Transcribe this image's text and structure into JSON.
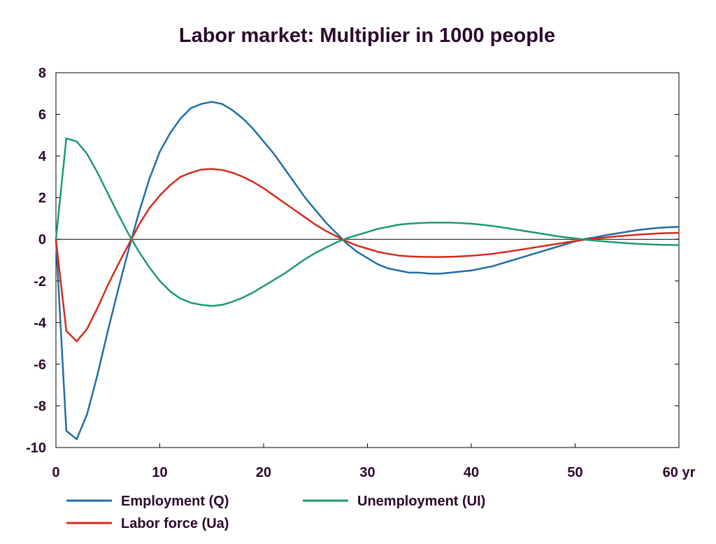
{
  "chart_data": {
    "type": "line",
    "title": "Labor market: Multiplier in 1000 people",
    "xlabel": "",
    "ylabel": "",
    "xlim": [
      0,
      60
    ],
    "ylim": [
      -10,
      8
    ],
    "x_ticks": [
      0,
      10,
      20,
      30,
      40,
      50,
      60
    ],
    "x_tick_labels": [
      "0",
      "10",
      "20",
      "30",
      "40",
      "50",
      "60 yr"
    ],
    "y_ticks": [
      8,
      6,
      4,
      2,
      0,
      -2,
      -4,
      -6,
      -8,
      -10
    ],
    "y_tick_labels": [
      "8",
      "6",
      "4",
      "2",
      "0",
      "-2",
      "-4",
      "-6",
      "-8",
      "-10"
    ],
    "grid": false,
    "zero_line": true,
    "legend_position": "bottom",
    "x": [
      0,
      1,
      2,
      3,
      4,
      5,
      6,
      7,
      8,
      9,
      10,
      11,
      12,
      13,
      14,
      15,
      16,
      17,
      18,
      19,
      20,
      21,
      22,
      23,
      24,
      25,
      26,
      27,
      28,
      29,
      30,
      31,
      32,
      33,
      34,
      35,
      36,
      37,
      38,
      39,
      40,
      41,
      42,
      43,
      44,
      45,
      46,
      47,
      48,
      49,
      50,
      51,
      52,
      53,
      54,
      55,
      56,
      57,
      58,
      59,
      60
    ],
    "series": [
      {
        "name": "Employment (Q)",
        "color": "#1f6ea6",
        "values": [
          0,
          -9.2,
          -9.6,
          -8.4,
          -6.5,
          -4.4,
          -2.4,
          -0.5,
          1.3,
          2.9,
          4.2,
          5.1,
          5.8,
          6.3,
          6.5,
          6.6,
          6.5,
          6.2,
          5.8,
          5.3,
          4.7,
          4.1,
          3.4,
          2.7,
          2.0,
          1.4,
          0.8,
          0.3,
          -0.2,
          -0.6,
          -0.9,
          -1.2,
          -1.4,
          -1.5,
          -1.6,
          -1.6,
          -1.65,
          -1.65,
          -1.6,
          -1.55,
          -1.5,
          -1.4,
          -1.3,
          -1.15,
          -1.0,
          -0.85,
          -0.7,
          -0.55,
          -0.4,
          -0.25,
          -0.1,
          0.02,
          0.1,
          0.2,
          0.28,
          0.36,
          0.44,
          0.5,
          0.55,
          0.58,
          0.6
        ]
      },
      {
        "name": "Labor force (Ua)",
        "color": "#d62a1a",
        "values": [
          0,
          -4.4,
          -4.9,
          -4.3,
          -3.3,
          -2.2,
          -1.2,
          -0.25,
          0.7,
          1.5,
          2.1,
          2.6,
          3.0,
          3.2,
          3.35,
          3.38,
          3.33,
          3.2,
          3.0,
          2.75,
          2.45,
          2.1,
          1.75,
          1.4,
          1.05,
          0.7,
          0.4,
          0.15,
          -0.1,
          -0.3,
          -0.45,
          -0.6,
          -0.7,
          -0.78,
          -0.82,
          -0.84,
          -0.85,
          -0.85,
          -0.84,
          -0.82,
          -0.79,
          -0.75,
          -0.7,
          -0.63,
          -0.56,
          -0.48,
          -0.4,
          -0.32,
          -0.24,
          -0.16,
          -0.08,
          -0.02,
          0.04,
          0.09,
          0.14,
          0.18,
          0.22,
          0.25,
          0.28,
          0.3,
          0.31
        ]
      },
      {
        "name": "Unemployment (UI)",
        "color": "#1b9a72",
        "values": [
          0,
          4.85,
          4.7,
          4.1,
          3.2,
          2.2,
          1.2,
          0.25,
          -0.6,
          -1.35,
          -2.0,
          -2.5,
          -2.85,
          -3.05,
          -3.15,
          -3.2,
          -3.15,
          -3.0,
          -2.8,
          -2.55,
          -2.25,
          -1.95,
          -1.65,
          -1.3,
          -0.95,
          -0.65,
          -0.4,
          -0.15,
          0.05,
          0.2,
          0.35,
          0.5,
          0.6,
          0.7,
          0.75,
          0.78,
          0.8,
          0.8,
          0.8,
          0.78,
          0.75,
          0.7,
          0.64,
          0.57,
          0.49,
          0.41,
          0.33,
          0.25,
          0.17,
          0.1,
          0.04,
          -0.02,
          -0.07,
          -0.11,
          -0.15,
          -0.19,
          -0.22,
          -0.24,
          -0.26,
          -0.27,
          -0.28
        ]
      }
    ]
  }
}
